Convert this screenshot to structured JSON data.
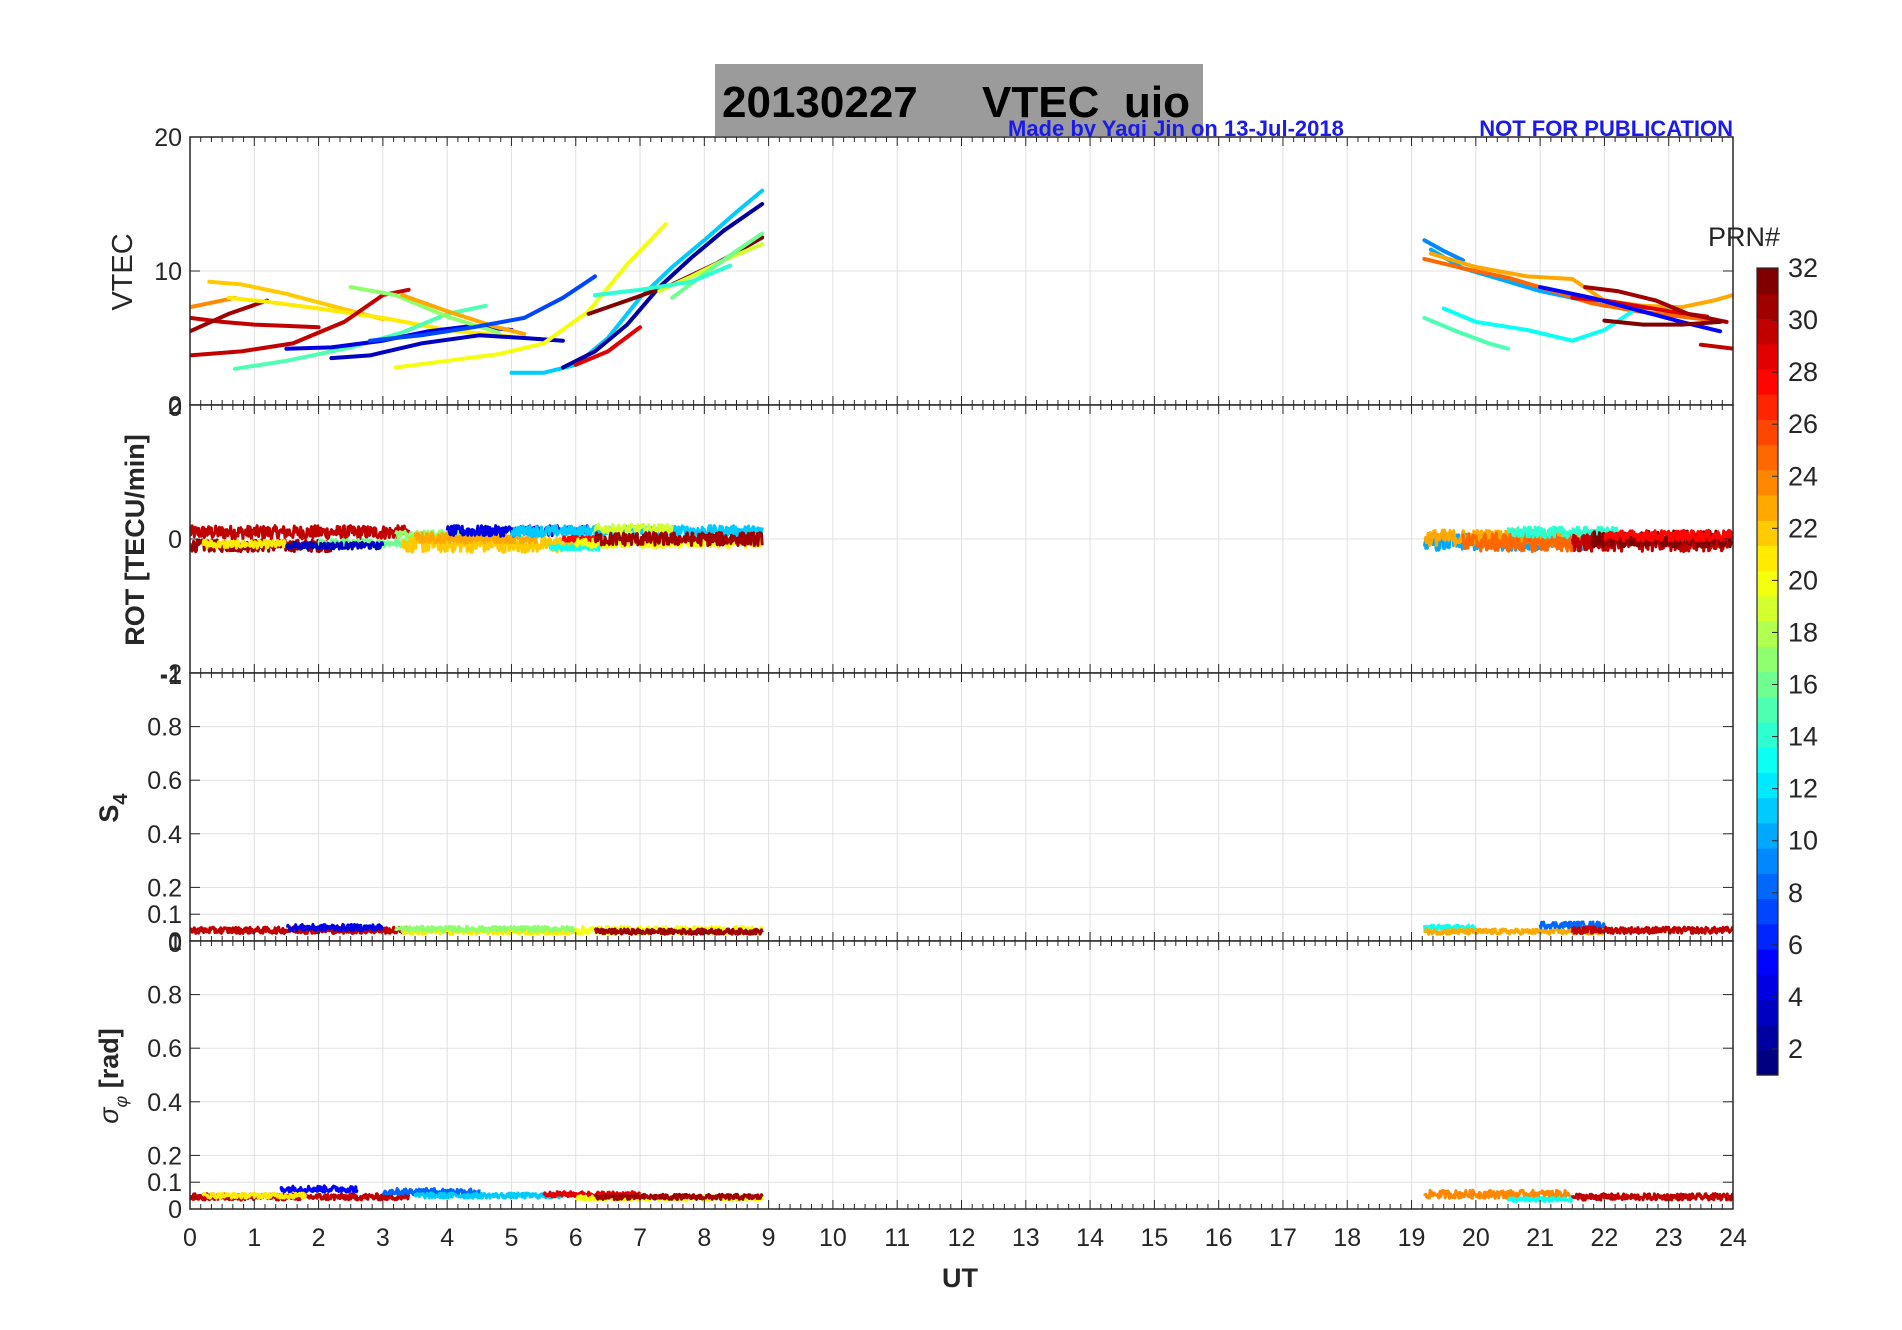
{
  "title": {
    "date": "20130227",
    "label": "VTEC",
    "station": "uio"
  },
  "notes": {
    "made_by": "Made by Yaqi Jin on 13-Jul-2018",
    "not_for_publication": "NOT FOR PUBLICATION"
  },
  "colors": {
    "title_box": "#9b9b9b",
    "note": "#1a1aee",
    "grid": "#e0e0e0"
  },
  "colorbar": {
    "title": "PRN#",
    "colormap": "jet",
    "range": [
      1,
      32
    ],
    "tick_labels": [
      "2",
      "4",
      "6",
      "8",
      "10",
      "12",
      "14",
      "16",
      "18",
      "20",
      "22",
      "24",
      "26",
      "28",
      "30",
      "32"
    ]
  },
  "x_axis": {
    "label": "UT",
    "range": [
      0,
      24
    ],
    "tick_labels": [
      "0",
      "1",
      "2",
      "3",
      "4",
      "5",
      "6",
      "7",
      "8",
      "9",
      "10",
      "11",
      "12",
      "13",
      "14",
      "15",
      "16",
      "17",
      "18",
      "19",
      "20",
      "21",
      "22",
      "23",
      "24"
    ]
  },
  "panels": [
    {
      "ylabel": "VTEC",
      "ylim": [
        0,
        20
      ],
      "tick_labels": [
        "20",
        "10",
        "0"
      ]
    },
    {
      "ylabel": "ROT [TECU/min]",
      "ylim": [
        -2,
        2
      ],
      "tick_labels": [
        "2",
        "0",
        "-2"
      ]
    },
    {
      "ylabel_main": "S",
      "ylabel_sub": "4",
      "ylim": [
        0,
        1
      ],
      "tick_labels": [
        "1",
        "0.8",
        "0.6",
        "0.4",
        "0.2",
        "0.1",
        "0"
      ]
    },
    {
      "ylabel_main": "σ",
      "ylabel_sub": "φ",
      "ylabel_unit": " [rad]",
      "ylim": [
        0,
        1
      ],
      "tick_labels": [
        "1",
        "0.8",
        "0.6",
        "0.4",
        "0.2",
        "0.1",
        "0"
      ]
    }
  ],
  "overlap_tick_labels": [
    "0",
    "-1",
    "0"
  ],
  "chart_data": {
    "type": "line",
    "grid": true,
    "xlabel": "UT",
    "xlim": [
      0,
      24
    ],
    "vtec_series": [
      {
        "prn": 30,
        "x": [
          0,
          0.5,
          1.0,
          1.5,
          2.0
        ],
        "y": [
          6.5,
          6.2,
          6.0,
          5.9,
          5.8
        ]
      },
      {
        "prn": 31,
        "x": [
          0,
          0.6,
          1.2
        ],
        "y": [
          5.5,
          6.8,
          7.8
        ]
      },
      {
        "prn": 24,
        "x": [
          0,
          0.3,
          0.7
        ],
        "y": [
          7.3,
          7.6,
          8.0
        ]
      },
      {
        "prn": 22,
        "x": [
          0.3,
          0.8,
          1.5,
          2.2,
          3.0
        ],
        "y": [
          9.2,
          9.0,
          8.3,
          7.4,
          6.4
        ]
      },
      {
        "prn": 21,
        "x": [
          0.6,
          1.2,
          2.0,
          3.0,
          4.0,
          5.0
        ],
        "y": [
          8.0,
          7.7,
          7.2,
          6.5,
          5.6,
          5.1
        ]
      },
      {
        "prn": 30,
        "x": [
          0,
          0.8,
          1.6,
          2.4,
          3.0,
          3.4
        ],
        "y": [
          3.7,
          4.0,
          4.6,
          6.2,
          8.2,
          8.6
        ]
      },
      {
        "prn": 15,
        "x": [
          0.7,
          1.5,
          2.5,
          3.3,
          4.0,
          4.6
        ],
        "y": [
          2.7,
          3.3,
          4.3,
          5.4,
          6.8,
          7.4
        ]
      },
      {
        "prn": 4,
        "x": [
          1.5,
          2.2,
          3.0,
          3.7,
          4.4,
          5.0
        ],
        "y": [
          4.2,
          4.3,
          4.8,
          5.5,
          5.9,
          5.6
        ]
      },
      {
        "prn": 17,
        "x": [
          2.5,
          3.2,
          4.0,
          4.8
        ],
        "y": [
          8.8,
          8.2,
          6.6,
          5.4
        ]
      },
      {
        "prn": 3,
        "x": [
          2.2,
          2.8,
          3.6,
          4.5,
          5.2,
          5.8
        ],
        "y": [
          3.5,
          3.7,
          4.6,
          5.2,
          5.0,
          4.8
        ]
      },
      {
        "prn": 20,
        "x": [
          3.2,
          4.0,
          4.8,
          5.5,
          6.2,
          6.8,
          7.4
        ],
        "y": [
          2.8,
          3.3,
          3.8,
          4.6,
          7.0,
          10.5,
          13.5
        ]
      },
      {
        "prn": 23,
        "x": [
          3.3,
          4.0,
          4.7,
          5.2
        ],
        "y": [
          8.2,
          7.0,
          5.9,
          5.3
        ]
      },
      {
        "prn": 7,
        "x": [
          2.8,
          3.6,
          4.4,
          5.2,
          5.8,
          6.3
        ],
        "y": [
          4.8,
          5.2,
          5.8,
          6.5,
          8.0,
          9.6
        ]
      },
      {
        "prn": 11,
        "x": [
          5.0,
          5.5,
          6.0,
          6.5,
          7.0,
          7.5,
          8.0,
          8.5,
          8.9
        ],
        "y": [
          2.4,
          2.4,
          3.0,
          5.0,
          8.0,
          10.3,
          12.3,
          14.4,
          16.0
        ]
      },
      {
        "prn": 2,
        "x": [
          5.8,
          6.3,
          6.8,
          7.3,
          7.8,
          8.3,
          8.9
        ],
        "y": [
          2.8,
          4.0,
          6.0,
          8.8,
          11.0,
          13.0,
          15.0
        ]
      },
      {
        "prn": 29,
        "x": [
          6.0,
          6.5,
          7.0
        ],
        "y": [
          3.0,
          4.0,
          5.8
        ]
      },
      {
        "prn": 32,
        "x": [
          6.2,
          6.8,
          7.5,
          8.2,
          8.9
        ],
        "y": [
          6.8,
          7.8,
          9.0,
          10.6,
          12.5
        ]
      },
      {
        "prn": 19,
        "x": [
          7.3,
          7.8,
          8.3,
          8.9
        ],
        "y": [
          8.5,
          9.6,
          10.8,
          12.0
        ]
      },
      {
        "prn": 16,
        "x": [
          7.5,
          8.0,
          8.5,
          8.9
        ],
        "y": [
          8.0,
          9.8,
          11.5,
          12.8
        ]
      },
      {
        "prn": 14,
        "x": [
          6.3,
          7.0,
          7.8,
          8.4
        ],
        "y": [
          8.2,
          8.6,
          9.2,
          10.4
        ]
      },
      {
        "prn": 9,
        "x": [
          19.2,
          19.5,
          19.8
        ],
        "y": [
          12.3,
          11.5,
          10.8
        ]
      },
      {
        "prn": 10,
        "x": [
          19.3,
          19.8,
          20.3,
          21.0,
          21.5,
          22.0,
          22.5,
          23.0
        ],
        "y": [
          11.6,
          10.2,
          9.5,
          8.5,
          8.0,
          7.4,
          7.2,
          7.3
        ]
      },
      {
        "prn": 25,
        "x": [
          19.2,
          19.8,
          20.5,
          21.2,
          21.8,
          22.5,
          23.2,
          23.9
        ],
        "y": [
          10.9,
          10.2,
          9.5,
          8.5,
          7.6,
          7.0,
          6.6,
          6.2
        ]
      },
      {
        "prn": 23,
        "x": [
          19.3,
          20.0,
          20.8,
          21.5,
          22.0,
          22.6,
          23.2,
          23.7,
          24.0
        ],
        "y": [
          11.3,
          10.3,
          9.6,
          9.4,
          7.8,
          7.4,
          7.3,
          7.8,
          8.2
        ]
      },
      {
        "prn": 15,
        "x": [
          19.2,
          19.7,
          20.2,
          20.5
        ],
        "y": [
          6.5,
          5.5,
          4.6,
          4.2
        ]
      },
      {
        "prn": 13,
        "x": [
          19.5,
          20.0,
          20.8,
          21.5,
          22.0,
          22.5
        ],
        "y": [
          7.2,
          6.2,
          5.6,
          4.8,
          5.6,
          7.2
        ]
      },
      {
        "prn": 29,
        "x": [
          21.5,
          22.0,
          22.5,
          23.0,
          23.6
        ],
        "y": [
          8.0,
          7.8,
          7.4,
          7.0,
          6.6
        ]
      },
      {
        "prn": 31,
        "x": [
          21.7,
          22.2,
          22.8,
          23.3,
          23.9
        ],
        "y": [
          8.8,
          8.5,
          7.8,
          6.8,
          6.2
        ]
      },
      {
        "prn": 5,
        "x": [
          21.0,
          21.8,
          22.5,
          23.2,
          23.8
        ],
        "y": [
          8.8,
          8.0,
          7.1,
          6.2,
          5.5
        ]
      },
      {
        "prn": 32,
        "x": [
          22.0,
          22.6,
          23.2,
          23.8
        ],
        "y": [
          6.3,
          6.0,
          6.0,
          6.2
        ]
      },
      {
        "prn": 30,
        "x": [
          23.5,
          24.0
        ],
        "y": [
          4.5,
          4.2
        ]
      }
    ],
    "rot_segments": [
      {
        "prn": 30,
        "x": [
          0,
          3.4
        ],
        "level": 0.1,
        "spread": 0.1
      },
      {
        "prn": 31,
        "x": [
          0,
          2.2
        ],
        "level": -0.1,
        "spread": 0.09
      },
      {
        "prn": 21,
        "x": [
          0.2,
          1.5
        ],
        "level": -0.08,
        "spread": 0.06
      },
      {
        "prn": 16,
        "x": [
          2.0,
          3.5
        ],
        "level": -0.06,
        "spread": 0.06
      },
      {
        "prn": 17,
        "x": [
          3.2,
          4.5
        ],
        "level": 0.07,
        "spread": 0.06
      },
      {
        "prn": 22,
        "x": [
          3.3,
          6.0
        ],
        "level": -0.08,
        "spread": 0.12
      },
      {
        "prn": 23,
        "x": [
          3.5,
          5.4
        ],
        "level": 0.02,
        "spread": 0.08
      },
      {
        "prn": 4,
        "x": [
          4.0,
          6.2
        ],
        "level": 0.12,
        "spread": 0.08
      },
      {
        "prn": 3,
        "x": [
          1.5,
          3.0
        ],
        "level": -0.1,
        "spread": 0.05
      },
      {
        "prn": 11,
        "x": [
          5.0,
          8.9
        ],
        "level": 0.12,
        "spread": 0.08
      },
      {
        "prn": 13,
        "x": [
          5.6,
          6.4
        ],
        "level": -0.12,
        "spread": 0.05
      },
      {
        "prn": 19,
        "x": [
          6.3,
          7.5
        ],
        "level": 0.15,
        "spread": 0.07
      },
      {
        "prn": 28,
        "x": [
          5.8,
          6.4
        ],
        "level": 0.0,
        "spread": 0.04
      },
      {
        "prn": 20,
        "x": [
          6.0,
          8.9
        ],
        "level": -0.06,
        "spread": 0.07
      },
      {
        "prn": 31,
        "x": [
          6.3,
          8.9
        ],
        "level": 0.0,
        "spread": 0.1
      },
      {
        "prn": 10,
        "x": [
          19.2,
          21.8
        ],
        "level": -0.05,
        "spread": 0.12
      },
      {
        "prn": 23,
        "x": [
          19.2,
          22.0
        ],
        "level": 0.02,
        "spread": 0.12
      },
      {
        "prn": 25,
        "x": [
          19.8,
          21.8
        ],
        "level": -0.05,
        "spread": 0.14
      },
      {
        "prn": 14,
        "x": [
          20.5,
          22.2
        ],
        "level": 0.1,
        "spread": 0.08
      },
      {
        "prn": 30,
        "x": [
          21.5,
          24.0
        ],
        "level": -0.05,
        "spread": 0.14
      },
      {
        "prn": 32,
        "x": [
          21.8,
          24.0
        ],
        "level": 0.0,
        "spread": 0.12
      },
      {
        "prn": 28,
        "x": [
          22.0,
          24.0
        ],
        "level": 0.05,
        "spread": 0.08
      }
    ],
    "s4_segments": [
      {
        "prn": 30,
        "x": [
          0,
          3.4
        ],
        "level": 0.04,
        "spread": 0.012
      },
      {
        "prn": 21,
        "x": [
          3.3,
          6.0
        ],
        "level": 0.035,
        "spread": 0.01
      },
      {
        "prn": 17,
        "x": [
          3.2,
          6.0
        ],
        "level": 0.045,
        "spread": 0.01
      },
      {
        "prn": 4,
        "x": [
          1.5,
          3.0
        ],
        "level": 0.05,
        "spread": 0.012
      },
      {
        "prn": 20,
        "x": [
          6.0,
          8.9
        ],
        "level": 0.04,
        "spread": 0.015
      },
      {
        "prn": 31,
        "x": [
          6.3,
          8.9
        ],
        "level": 0.035,
        "spread": 0.01
      },
      {
        "prn": 13,
        "x": [
          19.2,
          20.0
        ],
        "level": 0.05,
        "spread": 0.01
      },
      {
        "prn": 23,
        "x": [
          19.2,
          22.0
        ],
        "level": 0.035,
        "spread": 0.01
      },
      {
        "prn": 8,
        "x": [
          21.0,
          22.0
        ],
        "level": 0.06,
        "spread": 0.012
      },
      {
        "prn": 30,
        "x": [
          21.5,
          24.0
        ],
        "level": 0.04,
        "spread": 0.012
      }
    ],
    "sigma_segments": [
      {
        "prn": 30,
        "x": [
          0,
          3.4
        ],
        "level": 0.045,
        "spread": 0.012
      },
      {
        "prn": 5,
        "x": [
          1.4,
          2.6
        ],
        "level": 0.075,
        "spread": 0.012
      },
      {
        "prn": 21,
        "x": [
          0.2,
          1.8
        ],
        "level": 0.05,
        "spread": 0.01
      },
      {
        "prn": 8,
        "x": [
          3.0,
          4.5
        ],
        "level": 0.065,
        "spread": 0.012
      },
      {
        "prn": 11,
        "x": [
          3.5,
          5.8
        ],
        "level": 0.05,
        "spread": 0.01
      },
      {
        "prn": 29,
        "x": [
          5.5,
          7.0
        ],
        "level": 0.055,
        "spread": 0.01
      },
      {
        "prn": 20,
        "x": [
          6.0,
          8.9
        ],
        "level": 0.04,
        "spread": 0.01
      },
      {
        "prn": 31,
        "x": [
          6.3,
          8.9
        ],
        "level": 0.045,
        "spread": 0.01
      },
      {
        "prn": 24,
        "x": [
          19.2,
          21.5
        ],
        "level": 0.055,
        "spread": 0.015
      },
      {
        "prn": 13,
        "x": [
          20.5,
          21.5
        ],
        "level": 0.035,
        "spread": 0.008
      },
      {
        "prn": 30,
        "x": [
          21.5,
          24.0
        ],
        "level": 0.045,
        "spread": 0.012
      }
    ]
  }
}
